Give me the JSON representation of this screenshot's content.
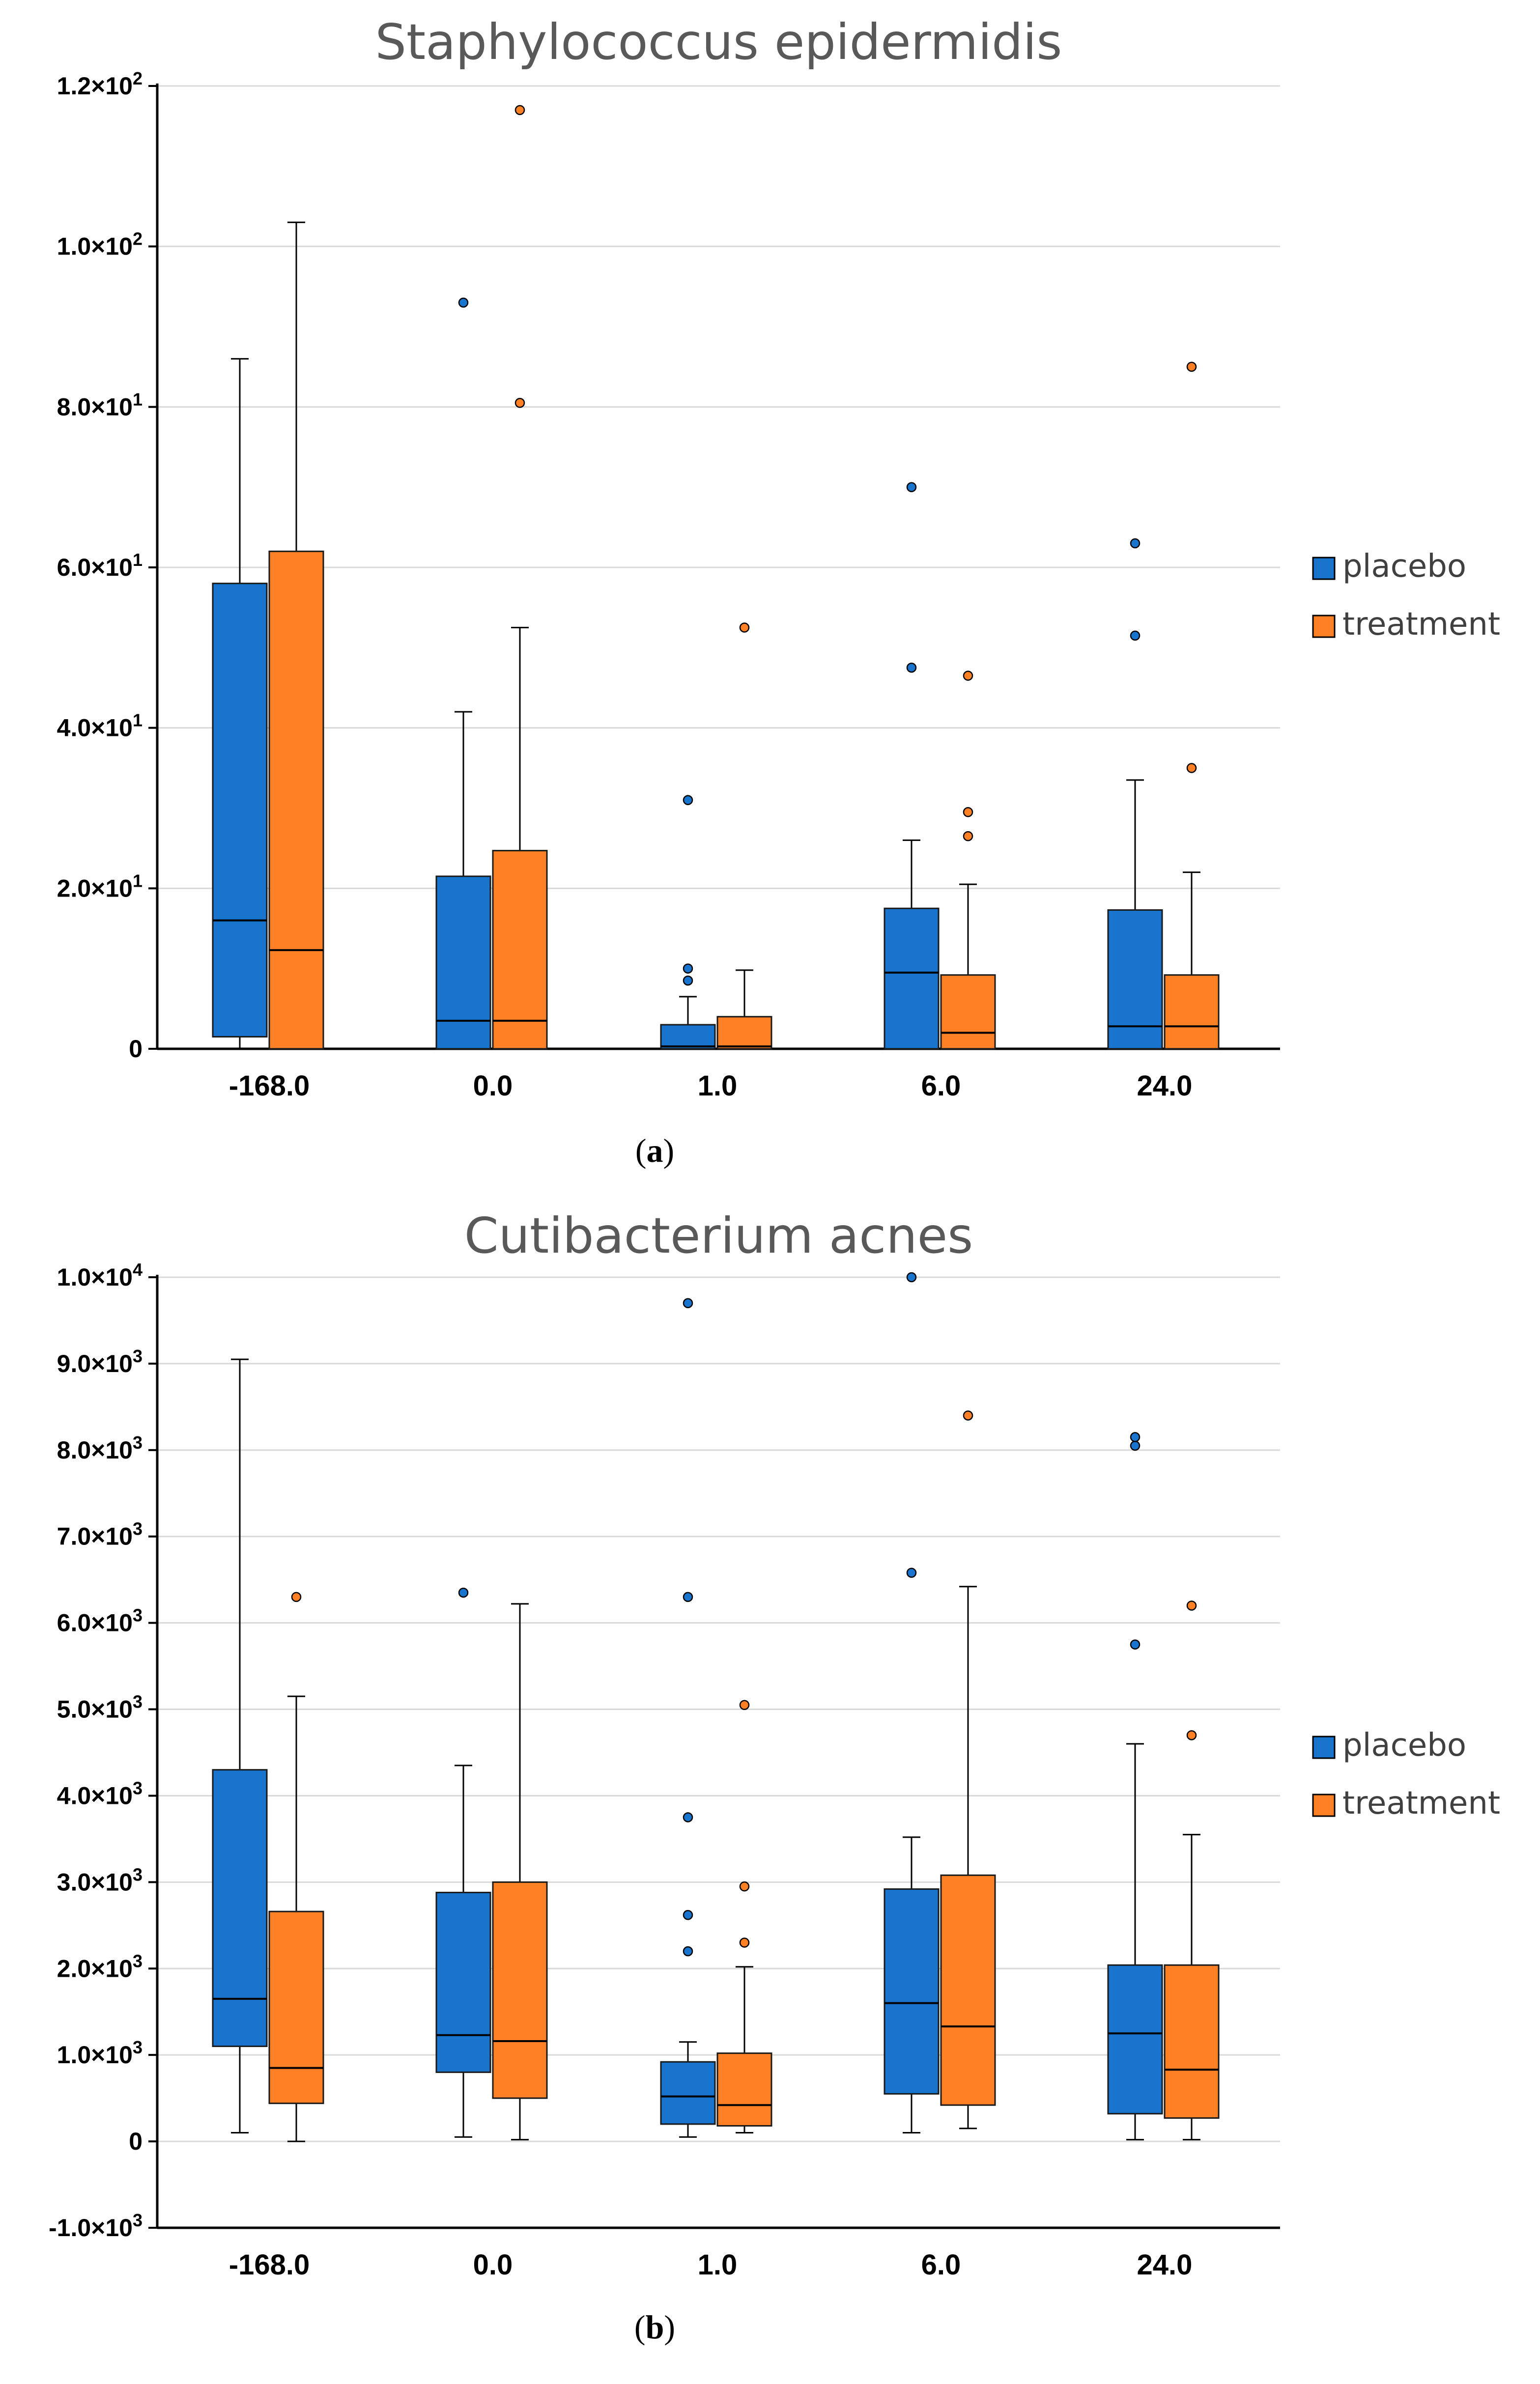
{
  "colors": {
    "placebo": "#1874CD",
    "treatment": "#FF8025",
    "grid": "#D9D9D9",
    "axis": "#000000",
    "title": "#595959"
  },
  "chart_data": [
    {
      "type": "boxplot",
      "title": "Staphylococcus epidermidis",
      "caption_letter": "a",
      "xlabel": "",
      "ylabel": "",
      "categories": [
        "-168.0",
        "0.0",
        "1.0",
        "6.0",
        "24.0"
      ],
      "ylim": [
        0,
        120
      ],
      "yticks": [
        {
          "value": 0,
          "label": "0",
          "exp": ""
        },
        {
          "value": 20,
          "label": "2.0×10",
          "exp": "1"
        },
        {
          "value": 40,
          "label": "4.0×10",
          "exp": "1"
        },
        {
          "value": 60,
          "label": "6.0×10",
          "exp": "1"
        },
        {
          "value": 80,
          "label": "8.0×10",
          "exp": "1"
        },
        {
          "value": 100,
          "label": "1.0×10",
          "exp": "2"
        },
        {
          "value": 120,
          "label": "1.2×10",
          "exp": "2"
        }
      ],
      "legend": [
        "placebo",
        "treatment"
      ],
      "series": [
        {
          "name": "placebo",
          "boxes": [
            {
              "whisker_low": 0,
              "q1": 1.5,
              "median": 16,
              "q3": 58,
              "whisker_high": 86,
              "outliers": []
            },
            {
              "whisker_low": 0,
              "q1": 0,
              "median": 3.5,
              "q3": 21.5,
              "whisker_high": 42,
              "outliers": [
                93
              ]
            },
            {
              "whisker_low": 0,
              "q1": 0,
              "median": 0.3,
              "q3": 3,
              "whisker_high": 6.5,
              "outliers": [
                8.5,
                10,
                31
              ]
            },
            {
              "whisker_low": 0,
              "q1": 0,
              "median": 9.5,
              "q3": 17.5,
              "whisker_high": 26,
              "outliers": [
                47.5,
                70
              ]
            },
            {
              "whisker_low": 0,
              "q1": 0,
              "median": 2.8,
              "q3": 17.3,
              "whisker_high": 33.5,
              "outliers": [
                51.5,
                63
              ]
            }
          ]
        },
        {
          "name": "treatment",
          "boxes": [
            {
              "whisker_low": 0,
              "q1": 0,
              "median": 12.3,
              "q3": 62,
              "whisker_high": 103,
              "outliers": []
            },
            {
              "whisker_low": 0,
              "q1": 0,
              "median": 3.5,
              "q3": 24.7,
              "whisker_high": 52.5,
              "outliers": [
                80.5,
                117
              ]
            },
            {
              "whisker_low": 0,
              "q1": 0,
              "median": 0.3,
              "q3": 4,
              "whisker_high": 9.8,
              "outliers": [
                52.5
              ]
            },
            {
              "whisker_low": 0,
              "q1": 0,
              "median": 2,
              "q3": 9.2,
              "whisker_high": 20.5,
              "outliers": [
                26.5,
                29.5,
                46.5
              ]
            },
            {
              "whisker_low": 0,
              "q1": 0,
              "median": 2.8,
              "q3": 9.2,
              "whisker_high": 22,
              "outliers": [
                35,
                85
              ]
            }
          ]
        }
      ]
    },
    {
      "type": "boxplot",
      "title": "Cutibacterium acnes",
      "caption_letter": "b",
      "xlabel": "",
      "ylabel": "",
      "categories": [
        "-168.0",
        "0.0",
        "1.0",
        "6.0",
        "24.0"
      ],
      "ylim": [
        -1000,
        10000
      ],
      "yticks": [
        {
          "value": -1000,
          "label": "-1.0×10",
          "exp": "3"
        },
        {
          "value": 0,
          "label": "0",
          "exp": ""
        },
        {
          "value": 1000,
          "label": "1.0×10",
          "exp": "3"
        },
        {
          "value": 2000,
          "label": "2.0×10",
          "exp": "3"
        },
        {
          "value": 3000,
          "label": "3.0×10",
          "exp": "3"
        },
        {
          "value": 4000,
          "label": "4.0×10",
          "exp": "3"
        },
        {
          "value": 5000,
          "label": "5.0×10",
          "exp": "3"
        },
        {
          "value": 6000,
          "label": "6.0×10",
          "exp": "3"
        },
        {
          "value": 7000,
          "label": "7.0×10",
          "exp": "3"
        },
        {
          "value": 8000,
          "label": "8.0×10",
          "exp": "3"
        },
        {
          "value": 9000,
          "label": "9.0×10",
          "exp": "3"
        },
        {
          "value": 10000,
          "label": "1.0×10",
          "exp": "4"
        }
      ],
      "legend": [
        "placebo",
        "treatment"
      ],
      "series": [
        {
          "name": "placebo",
          "boxes": [
            {
              "whisker_low": 100,
              "q1": 1100,
              "median": 1650,
              "q3": 4300,
              "whisker_high": 9050,
              "outliers": []
            },
            {
              "whisker_low": 50,
              "q1": 800,
              "median": 1230,
              "q3": 2880,
              "whisker_high": 4350,
              "outliers": [
                6350
              ]
            },
            {
              "whisker_low": 50,
              "q1": 200,
              "median": 520,
              "q3": 920,
              "whisker_high": 1150,
              "outliers": [
                2200,
                2620,
                3750,
                6300,
                9700
              ]
            },
            {
              "whisker_low": 100,
              "q1": 550,
              "median": 1600,
              "q3": 2920,
              "whisker_high": 3520,
              "outliers": [
                6580,
                10000
              ]
            },
            {
              "whisker_low": 20,
              "q1": 320,
              "median": 1250,
              "q3": 2040,
              "whisker_high": 4600,
              "outliers": [
                5750,
                8050,
                8150
              ]
            }
          ]
        },
        {
          "name": "treatment",
          "boxes": [
            {
              "whisker_low": 0,
              "q1": 440,
              "median": 850,
              "q3": 2660,
              "whisker_high": 5150,
              "outliers": [
                6300
              ]
            },
            {
              "whisker_low": 20,
              "q1": 500,
              "median": 1160,
              "q3": 3000,
              "whisker_high": 6220,
              "outliers": []
            },
            {
              "whisker_low": 100,
              "q1": 180,
              "median": 420,
              "q3": 1020,
              "whisker_high": 2020,
              "outliers": [
                2300,
                2950,
                5050
              ]
            },
            {
              "whisker_low": 150,
              "q1": 420,
              "median": 1330,
              "q3": 3080,
              "whisker_high": 6420,
              "outliers": [
                8400
              ]
            },
            {
              "whisker_low": 20,
              "q1": 270,
              "median": 830,
              "q3": 2040,
              "whisker_high": 3550,
              "outliers": [
                4700,
                6200
              ]
            }
          ]
        }
      ]
    }
  ]
}
